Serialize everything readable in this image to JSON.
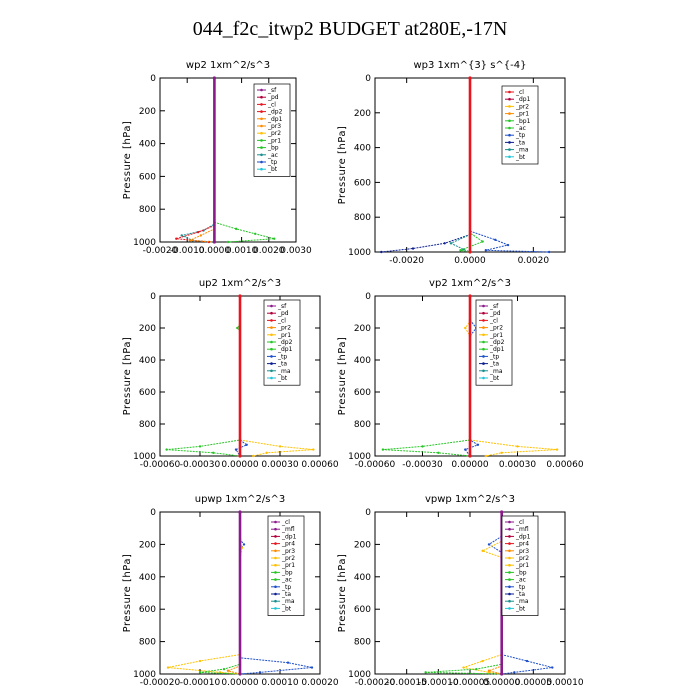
{
  "page_title": "044_f2c_itwp2  BUDGET at280E,-17N",
  "colors": {
    "purple": "#8b1a8b",
    "darkred": "#b0003a",
    "red": "#e8141e",
    "orange": "#ff8c00",
    "yellow": "#ffc000",
    "green": "#27c427",
    "teal": "#1b8f8f",
    "blue": "#1e4fc8",
    "navy": "#0b1f8f",
    "cyan": "#21c4d6"
  },
  "chart_data": [
    {
      "type": "line",
      "title": "wp2   1xm^2/s^3",
      "ylabel": "Pressure [hPa]",
      "xlim": [
        -0.002,
        0.003
      ],
      "ylim": [
        1000,
        0
      ],
      "xticks": [
        -0.002,
        -0.001,
        0.0,
        0.001,
        0.002,
        0.003
      ],
      "xtick_labels": [
        "-0.0020",
        "-0.0010",
        "0.0000",
        "0.0010",
        "0.0020",
        "0.0030"
      ],
      "yticks": [
        0,
        200,
        400,
        600,
        800,
        1000
      ],
      "ytick_labels": [
        "0",
        "200",
        "400",
        "600",
        "800",
        "1000"
      ],
      "legend": [
        "_sf",
        "_pd",
        "_cl",
        "_dp2",
        "_dp1",
        "_pr3",
        "_pr2",
        "_pr1",
        "_bp",
        "_ac",
        "_tp",
        "_bt"
      ],
      "legend_colors": [
        "#8b1a8b",
        "#b0003a",
        "#e8141e",
        "#e8141e",
        "#ff8c00",
        "#ff8c00",
        "#ffc000",
        "#27c427",
        "#27c427",
        "#1b8f8f",
        "#1e4fc8",
        "#21c4d6"
      ],
      "series": [
        {
          "color": "#27c427",
          "y": [
            0,
            880,
            920,
            950,
            980,
            1000
          ],
          "x": [
            0,
            0,
            0.0008,
            0.0015,
            0.0022,
            0.0005
          ]
        },
        {
          "color": "#1b8f8f",
          "y": [
            0,
            890,
            930,
            960,
            990,
            1000
          ],
          "x": [
            0,
            0,
            -0.0004,
            -0.0012,
            -0.0008,
            0
          ]
        },
        {
          "color": "#e8141e",
          "y": [
            0,
            900,
            940,
            980,
            1000
          ],
          "x": [
            0,
            0,
            -0.0006,
            -0.0014,
            -0.0002
          ]
        },
        {
          "color": "#ff8c00",
          "y": [
            0,
            920,
            960,
            990,
            1000
          ],
          "x": [
            0,
            0,
            -0.0005,
            -0.0009,
            0
          ]
        },
        {
          "color": "#8b1a8b",
          "y": [
            0,
            1000
          ],
          "x": [
            0,
            0
          ]
        }
      ]
    },
    {
      "type": "line",
      "title": "wp3   1xm^{3} s^{-4}",
      "ylabel": "Pressure [hPa]",
      "xlim": [
        -0.003,
        0.003
      ],
      "ylim": [
        1000,
        0
      ],
      "xticks": [
        -0.002,
        0.0,
        0.002
      ],
      "xtick_labels": [
        "-0.0020",
        "0.0000",
        "0.0020"
      ],
      "yticks": [
        0,
        200,
        400,
        600,
        800,
        1000
      ],
      "ytick_labels": [
        "0",
        "200",
        "400",
        "600",
        "800",
        "1000"
      ],
      "legend": [
        "_cl",
        "_dp1",
        "_pr2",
        "_pr1",
        "_bp1",
        "_ac",
        "_tp",
        "_ta",
        "_ma",
        "_bt"
      ],
      "legend_colors": [
        "#e8141e",
        "#b0003a",
        "#ffc000",
        "#ff8c00",
        "#27c427",
        "#27c427",
        "#1e4fc8",
        "#0b1f8f",
        "#1b8f8f",
        "#21c4d6"
      ],
      "series": [
        {
          "color": "#1e4fc8",
          "y": [
            0,
            880,
            930,
            960,
            990,
            1000
          ],
          "x": [
            0,
            0,
            0.0008,
            0.0012,
            0.0005,
            0.0025
          ]
        },
        {
          "color": "#0b1f8f",
          "y": [
            0,
            900,
            950,
            980,
            1000
          ],
          "x": [
            0,
            0,
            -0.0008,
            -0.0018,
            -0.0028
          ]
        },
        {
          "color": "#1b8f8f",
          "y": [
            0,
            900,
            950,
            985,
            1000
          ],
          "x": [
            0,
            0,
            -0.0006,
            -0.0002,
            0
          ]
        },
        {
          "color": "#27c427",
          "y": [
            0,
            890,
            940,
            990,
            1000
          ],
          "x": [
            0,
            0,
            0.0004,
            -0.0003,
            0
          ]
        },
        {
          "color": "#e8141e",
          "y": [
            0,
            1000
          ],
          "x": [
            0,
            0
          ]
        }
      ]
    },
    {
      "type": "line",
      "title": "up2   1xm^2/s^3",
      "ylabel": "Pressure [hPa]",
      "xlim": [
        -0.0006,
        0.0006
      ],
      "ylim": [
        1000,
        0
      ],
      "xticks": [
        -0.0006,
        -0.0003,
        0.0,
        0.0003,
        0.0006
      ],
      "xtick_labels": [
        "-0.00060",
        "-0.00030",
        "0.00000",
        "0.00030",
        "0.00060"
      ],
      "yticks": [
        0,
        200,
        400,
        600,
        800,
        1000
      ],
      "ytick_labels": [
        "0",
        "200",
        "400",
        "600",
        "800",
        "1000"
      ],
      "legend": [
        "_sf",
        "_pd",
        "_cl",
        "_pr2",
        "_pr1",
        "_dp2",
        "_dp1",
        "_tp",
        "_ta",
        "_ma",
        "_bt"
      ],
      "legend_colors": [
        "#8b1a8b",
        "#b0003a",
        "#e8141e",
        "#ff8c00",
        "#ffc000",
        "#27c427",
        "#27c427",
        "#1e4fc8",
        "#0b1f8f",
        "#1b8f8f",
        "#21c4d6"
      ],
      "series": [
        {
          "color": "#ffc000",
          "y": [
            0,
            900,
            940,
            960,
            980,
            1000
          ],
          "x": [
            0,
            0,
            0.0003,
            0.00055,
            0.0002,
            0.0001
          ]
        },
        {
          "color": "#27c427",
          "y": [
            0,
            180,
            200,
            220,
            900,
            940,
            960,
            980,
            1000
          ],
          "x": [
            0,
            0,
            -2e-05,
            0,
            0,
            -0.0003,
            -0.00055,
            -0.0002,
            0
          ]
        },
        {
          "color": "#1e4fc8",
          "y": [
            0,
            900,
            930,
            960,
            1000
          ],
          "x": [
            0,
            0,
            5e-05,
            -3e-05,
            0
          ]
        },
        {
          "color": "#e8141e",
          "y": [
            0,
            1000
          ],
          "x": [
            0,
            0
          ]
        }
      ]
    },
    {
      "type": "line",
      "title": "vp2   1xm^2/s^3",
      "ylabel": "Pressure [hPa]",
      "xlim": [
        -0.0006,
        0.0006
      ],
      "ylim": [
        1000,
        0
      ],
      "xticks": [
        -0.0006,
        -0.0003,
        0.0,
        0.0003,
        0.0006
      ],
      "xtick_labels": [
        "-0.00060",
        "-0.00030",
        "0.00000",
        "0.00030",
        "0.00060"
      ],
      "yticks": [
        0,
        200,
        400,
        600,
        800,
        1000
      ],
      "ytick_labels": [
        "0",
        "200",
        "400",
        "600",
        "800",
        "1000"
      ],
      "legend": [
        "_sf",
        "_pd",
        "_cl",
        "_pr2",
        "_pr1",
        "_dp2",
        "_dp1",
        "_tp",
        "_ta",
        "_ma",
        "_bt"
      ],
      "legend_colors": [
        "#8b1a8b",
        "#b0003a",
        "#e8141e",
        "#ff8c00",
        "#ffc000",
        "#27c427",
        "#27c427",
        "#1e4fc8",
        "#0b1f8f",
        "#1b8f8f",
        "#21c4d6"
      ],
      "series": [
        {
          "color": "#ffc000",
          "y": [
            0,
            160,
            200,
            250,
            900,
            940,
            960,
            980,
            1000
          ],
          "x": [
            0,
            0,
            -3e-05,
            0,
            0,
            0.0003,
            0.00055,
            0.0002,
            0.0001
          ]
        },
        {
          "color": "#27c427",
          "y": [
            0,
            900,
            940,
            960,
            980,
            1000
          ],
          "x": [
            0,
            0,
            -0.0003,
            -0.00055,
            -0.0002,
            0
          ]
        },
        {
          "color": "#1e4fc8",
          "y": [
            0,
            150,
            200,
            250,
            900,
            930,
            960,
            1000
          ],
          "x": [
            0,
            0,
            4e-05,
            0,
            0,
            5e-05,
            -3e-05,
            0
          ]
        },
        {
          "color": "#e8141e",
          "y": [
            0,
            1000
          ],
          "x": [
            0,
            0
          ]
        }
      ]
    },
    {
      "type": "line",
      "title": "upwp   1xm^2/s^3",
      "ylabel": "Pressure [hPa]",
      "xlim": [
        -0.0002,
        0.0002
      ],
      "ylim": [
        1000,
        0
      ],
      "xticks": [
        -0.0002,
        -0.0001,
        0.0,
        0.0001,
        0.0002
      ],
      "xtick_labels": [
        "-0.00020",
        "-0.00010",
        "0.00000",
        "0.00010",
        "0.00020"
      ],
      "yticks": [
        0,
        200,
        400,
        600,
        800,
        1000
      ],
      "ytick_labels": [
        "0",
        "200",
        "400",
        "600",
        "800",
        "1000"
      ],
      "legend": [
        "_cl",
        "_mfl",
        "_dp1",
        "_pr4",
        "_pr3",
        "_pr2",
        "_pr1",
        "_bp",
        "_ac",
        "_tp",
        "_ta",
        "_ma",
        "_bt"
      ],
      "legend_colors": [
        "#8b1a8b",
        "#8b1a8b",
        "#b0003a",
        "#e8141e",
        "#ff8c00",
        "#ffc000",
        "#ffc000",
        "#27c427",
        "#27c427",
        "#1e4fc8",
        "#0b1f8f",
        "#1b8f8f",
        "#21c4d6"
      ],
      "series": [
        {
          "color": "#1e4fc8",
          "y": [
            0,
            170,
            200,
            230,
            900,
            930,
            960,
            990,
            1000
          ],
          "x": [
            0,
            0,
            1e-05,
            0,
            0,
            0.00012,
            0.00018,
            5e-05,
            0
          ]
        },
        {
          "color": "#ffc000",
          "y": [
            0,
            180,
            220,
            300,
            880,
            920,
            960,
            990,
            1000
          ],
          "x": [
            0,
            0,
            5e-06,
            0,
            0,
            -0.0001,
            -0.00018,
            -5e-05,
            0
          ]
        },
        {
          "color": "#27c427",
          "y": [
            0,
            940,
            970,
            990,
            1000
          ],
          "x": [
            0,
            0,
            -4e-05,
            -0.0001,
            0
          ]
        },
        {
          "color": "#ff8c00",
          "y": [
            0,
            950,
            980,
            1000
          ],
          "x": [
            0,
            0,
            -3e-05,
            0
          ]
        },
        {
          "color": "#8b1a8b",
          "y": [
            0,
            1000
          ],
          "x": [
            0,
            0
          ]
        }
      ]
    },
    {
      "type": "line",
      "title": "vpwp   1xm^2/s^3",
      "ylabel": "Pressure [hPa]",
      "xlim": [
        -0.0002,
        0.0001
      ],
      "ylim": [
        1000,
        0
      ],
      "xticks": [
        -0.0002,
        -0.00015,
        -0.0001,
        -5e-05,
        0.0,
        5e-05,
        0.0001
      ],
      "xtick_labels": [
        "-0.00020",
        "-0.00015",
        "-0.00010",
        "-0.00005",
        "0.00000",
        "0.00005",
        "0.00010"
      ],
      "yticks": [
        0,
        200,
        400,
        600,
        800,
        1000
      ],
      "ytick_labels": [
        "0",
        "200",
        "400",
        "600",
        "800",
        "1000"
      ],
      "legend": [
        "_cl",
        "_mfl",
        "_dp1",
        "_pr4",
        "_pr3",
        "_pr2",
        "_pr1",
        "_bp",
        "_ac",
        "_tp",
        "_ta",
        "_ma",
        "_bt"
      ],
      "legend_colors": [
        "#8b1a8b",
        "#8b1a8b",
        "#b0003a",
        "#e8141e",
        "#ff8c00",
        "#ffc000",
        "#ffc000",
        "#27c427",
        "#27c427",
        "#1e4fc8",
        "#0b1f8f",
        "#1b8f8f",
        "#21c4d6"
      ],
      "series": [
        {
          "color": "#1e4fc8",
          "y": [
            0,
            150,
            200,
            250,
            880,
            920,
            960,
            990,
            1000
          ],
          "x": [
            0,
            0,
            -2e-05,
            0,
            0,
            4e-05,
            8e-05,
            2e-05,
            0
          ]
        },
        {
          "color": "#ffc000",
          "y": [
            0,
            180,
            240,
            280,
            880,
            920,
            960,
            990,
            1000
          ],
          "x": [
            0,
            0,
            -3e-05,
            0,
            0,
            -3e-05,
            -6e-05,
            -2e-05,
            0
          ]
        },
        {
          "color": "#27c427",
          "y": [
            0,
            940,
            970,
            990,
            1000
          ],
          "x": [
            0,
            0,
            -4e-05,
            -0.00012,
            0
          ]
        },
        {
          "color": "#ff8c00",
          "y": [
            0,
            950,
            980,
            1000
          ],
          "x": [
            0,
            0,
            -2e-05,
            0
          ]
        },
        {
          "color": "#8b1a8b",
          "y": [
            0,
            1000
          ],
          "x": [
            0,
            0
          ]
        }
      ]
    }
  ]
}
